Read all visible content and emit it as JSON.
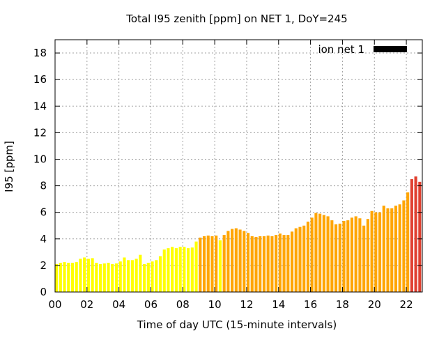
{
  "chart_data": {
    "type": "bar",
    "title": "Total I95 zenith [ppm] on NET 1, DoY=245",
    "xlabel": "Time of day UTC (15-minute intervals)",
    "ylabel": "I95 [ppm]",
    "xlim": [
      0,
      23
    ],
    "ylim": [
      0,
      19
    ],
    "x_ticks": [
      "00",
      "02",
      "04",
      "06",
      "08",
      "10",
      "12",
      "14",
      "16",
      "18",
      "20",
      "22"
    ],
    "x_tick_values": [
      0,
      2,
      4,
      6,
      8,
      10,
      12,
      14,
      16,
      18,
      20,
      22
    ],
    "y_ticks": [
      "0",
      "2",
      "4",
      "6",
      "8",
      "10",
      "12",
      "14",
      "16",
      "18"
    ],
    "y_tick_values": [
      0,
      2,
      4,
      6,
      8,
      10,
      12,
      14,
      16,
      18
    ],
    "grid": true,
    "legend": {
      "label": "ion net 1",
      "color": "#000000",
      "position": "top-right"
    },
    "interval_hours": 0.25,
    "color_scale": {
      "low": "#ffff00",
      "mid": "#ffa500",
      "high": "#e04030",
      "bands_ppm": [
        4,
        8
      ]
    },
    "values": [
      2.1,
      2.2,
      2.25,
      2.2,
      2.2,
      2.25,
      2.5,
      2.6,
      2.5,
      2.55,
      2.2,
      2.1,
      2.15,
      2.2,
      2.1,
      2.15,
      2.3,
      2.6,
      2.4,
      2.4,
      2.5,
      2.8,
      2.1,
      2.2,
      2.3,
      2.4,
      2.7,
      3.2,
      3.3,
      3.4,
      3.3,
      3.4,
      3.4,
      3.3,
      3.35,
      3.8,
      4.1,
      4.2,
      4.25,
      4.2,
      4.25,
      3.9,
      4.3,
      4.6,
      4.75,
      4.8,
      4.7,
      4.6,
      4.45,
      4.2,
      4.15,
      4.2,
      4.2,
      4.25,
      4.2,
      4.3,
      4.4,
      4.3,
      4.3,
      4.55,
      4.8,
      4.9,
      5.0,
      5.3,
      5.6,
      5.95,
      5.9,
      5.8,
      5.7,
      5.4,
      5.1,
      5.15,
      5.35,
      5.4,
      5.6,
      5.7,
      5.55,
      5.0,
      5.5,
      6.1,
      6.0,
      6.0,
      6.5,
      6.3,
      6.3,
      6.5,
      6.6,
      6.9,
      7.5,
      8.5,
      8.7,
      8.3
    ]
  }
}
